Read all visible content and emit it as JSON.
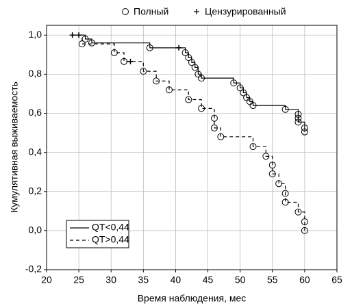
{
  "chart_data": {
    "type": "step",
    "xlabel": "Время наблюдения, мес",
    "ylabel": "Кумулятивная выживаемость",
    "marker_legend": {
      "event": "Полный",
      "censored": "Цензурированный"
    },
    "xlim": [
      20,
      65
    ],
    "xticks": [
      20,
      25,
      30,
      35,
      40,
      45,
      50,
      55,
      60,
      65
    ],
    "ylim": [
      -0.2,
      1.05
    ],
    "yticks": [
      {
        "value": -0.2,
        "label": "-0,2"
      },
      {
        "value": 0,
        "label": "0,0"
      },
      {
        "value": 0.2,
        "label": "0,2"
      },
      {
        "value": 0.4,
        "label": "0,4"
      },
      {
        "value": 0.6,
        "label": "0,6"
      },
      {
        "value": 0.8,
        "label": "0,8"
      },
      {
        "value": 1,
        "label": "1,0"
      }
    ],
    "grid": true,
    "series": [
      {
        "name": "QT<0,44",
        "color": "#000000",
        "dash": false,
        "x": [
          24,
          25,
          26,
          27,
          36,
          40.5,
          41.5,
          42,
          42.5,
          43,
          43.5,
          44,
          49,
          50,
          50.5,
          51,
          51.5,
          52,
          57,
          59,
          59,
          59,
          60,
          60
        ],
        "values": [
          1,
          1,
          0.98,
          0.96,
          0.935,
          0.935,
          0.91,
          0.885,
          0.86,
          0.835,
          0.8,
          0.78,
          0.755,
          0.73,
          0.705,
          0.68,
          0.66,
          0.64,
          0.62,
          0.595,
          0.575,
          0.555,
          0.525,
          0.505
        ],
        "censored": [
          true,
          true,
          false,
          false,
          false,
          true,
          false,
          false,
          false,
          false,
          false,
          false,
          false,
          false,
          false,
          false,
          false,
          false,
          false,
          false,
          false,
          false,
          false,
          false
        ]
      },
      {
        "name": "QT>0,44",
        "color": "#000000",
        "dash": true,
        "x": [
          25.5,
          30.5,
          32,
          33,
          35,
          37,
          39,
          42,
          44,
          46,
          46,
          47,
          52,
          54,
          55,
          55,
          56,
          57,
          57,
          59,
          60,
          60
        ],
        "values": [
          0.955,
          0.91,
          0.865,
          0.865,
          0.815,
          0.765,
          0.72,
          0.67,
          0.625,
          0.575,
          0.525,
          0.48,
          0.43,
          0.38,
          0.335,
          0.29,
          0.24,
          0.19,
          0.145,
          0.095,
          0.045,
          0
        ],
        "censored": [
          false,
          false,
          false,
          true,
          false,
          false,
          false,
          false,
          false,
          false,
          false,
          false,
          false,
          false,
          false,
          false,
          false,
          false,
          false,
          false,
          false,
          false
        ]
      }
    ]
  }
}
